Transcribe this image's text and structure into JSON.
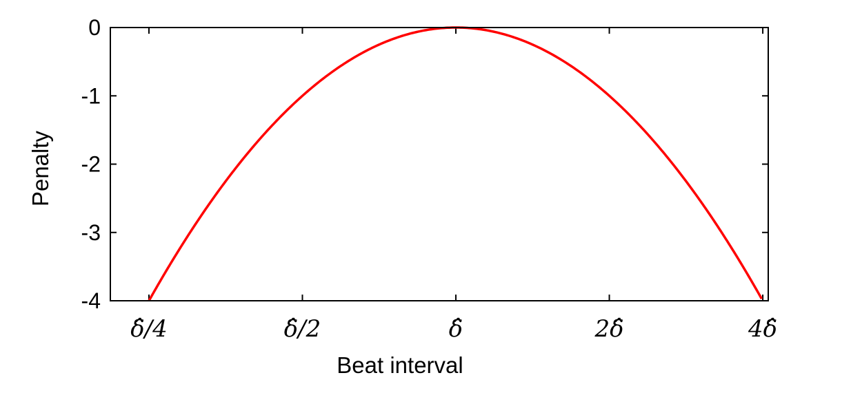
{
  "chart_data": {
    "type": "line",
    "title": "",
    "xlabel": "Beat interval",
    "ylabel": "Penalty",
    "x_scale": "log2",
    "x_unit": "multiples of δ̂",
    "xlim": [
      0.21,
      4.1
    ],
    "ylim": [
      -4,
      0
    ],
    "grid": false,
    "legend": "none",
    "x_ticks": [
      {
        "value": 0.25,
        "label": "δ̂/4"
      },
      {
        "value": 0.5,
        "label": "δ̂/2"
      },
      {
        "value": 1,
        "label": "δ̂"
      },
      {
        "value": 2,
        "label": "2δ̂"
      },
      {
        "value": 4,
        "label": "4δ̂"
      }
    ],
    "y_ticks": [
      {
        "value": 0,
        "label": "0"
      },
      {
        "value": -1,
        "label": "-1"
      },
      {
        "value": -2,
        "label": "-2"
      },
      {
        "value": -3,
        "label": "-3"
      },
      {
        "value": -4,
        "label": "-4"
      }
    ],
    "series": [
      {
        "name": "penalty",
        "color": "#ff0000",
        "function": "-(log2(x))^2",
        "x": [
          0.236,
          0.25,
          0.3,
          0.35,
          0.4,
          0.5,
          0.6,
          0.7,
          0.8,
          0.9,
          1.0,
          1.2,
          1.5,
          2.0,
          2.5,
          3.0,
          3.5,
          4.0
        ],
        "y": [
          -4.33,
          -4.0,
          -3.0,
          -2.29,
          -1.75,
          -1.0,
          -0.54,
          -0.26,
          -0.1,
          -0.02,
          0.0,
          -0.07,
          -0.34,
          -1.0,
          -1.75,
          -2.51,
          -3.28,
          -4.0
        ]
      }
    ]
  }
}
